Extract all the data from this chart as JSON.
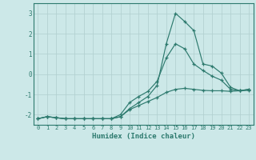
{
  "xlabel": "Humidex (Indice chaleur)",
  "x": [
    0,
    1,
    2,
    3,
    4,
    5,
    6,
    7,
    8,
    9,
    10,
    11,
    12,
    13,
    14,
    15,
    16,
    17,
    18,
    19,
    20,
    21,
    22,
    23
  ],
  "line1": [
    -2.2,
    -2.1,
    -2.15,
    -2.2,
    -2.2,
    -2.2,
    -2.2,
    -2.2,
    -2.2,
    -2.1,
    -1.75,
    -1.55,
    -1.35,
    -1.15,
    -0.9,
    -0.75,
    -0.7,
    -0.75,
    -0.8,
    -0.82,
    -0.82,
    -0.85,
    -0.82,
    -0.8
  ],
  "line2": [
    -2.2,
    -2.1,
    -2.15,
    -2.2,
    -2.2,
    -2.2,
    -2.2,
    -2.2,
    -2.2,
    -2.1,
    -1.7,
    -1.4,
    -1.1,
    -0.55,
    1.5,
    3.0,
    2.6,
    2.15,
    0.5,
    0.4,
    0.05,
    -0.65,
    -0.82,
    -0.75
  ],
  "line3": [
    -2.2,
    -2.1,
    -2.15,
    -2.2,
    -2.2,
    -2.2,
    -2.2,
    -2.2,
    -2.2,
    -2.0,
    -1.4,
    -1.1,
    -0.85,
    -0.35,
    0.8,
    1.5,
    1.25,
    0.5,
    0.18,
    -0.1,
    -0.3,
    -0.75,
    -0.82,
    -0.75
  ],
  "line_color": "#2d7a6e",
  "bg_color": "#cce8e8",
  "grid_major_color": "#b0cece",
  "grid_minor_color": "#c0dcdc",
  "xlim": [
    -0.5,
    23.5
  ],
  "ylim": [
    -2.5,
    3.5
  ],
  "yticks": [
    -2,
    -1,
    0,
    1,
    2,
    3
  ],
  "xticks": [
    0,
    1,
    2,
    3,
    4,
    5,
    6,
    7,
    8,
    9,
    10,
    11,
    12,
    13,
    14,
    15,
    16,
    17,
    18,
    19,
    20,
    21,
    22,
    23
  ]
}
